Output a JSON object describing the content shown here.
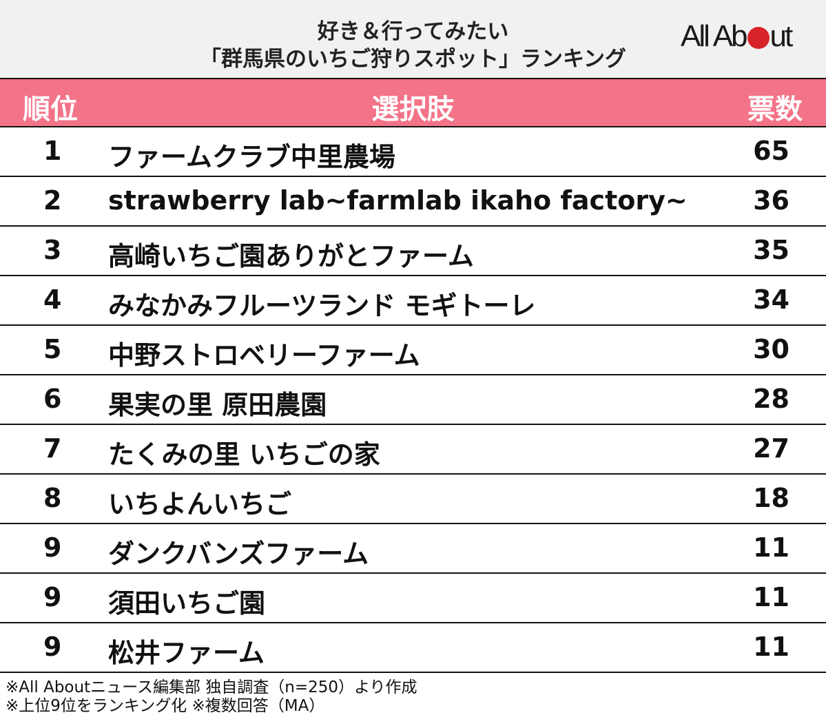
{
  "title": {
    "line1": "好き＆行ってみたい",
    "line2": "「群馬県のいちご狩りスポット」ランキング"
  },
  "logo": {
    "text_left": "All Ab",
    "text_right": "ut",
    "dot_color": "#d9232a"
  },
  "colors": {
    "header_bg": "#f37388",
    "title_bg": "#f1f1f1",
    "header_text": "#ffffff"
  },
  "header": {
    "rank": "順位",
    "choice": "選択肢",
    "votes": "票数"
  },
  "rows": [
    {
      "rank": "1",
      "name": "ファームクラブ中里農場",
      "votes": "65"
    },
    {
      "rank": "2",
      "name": "strawberry lab~farmlab ikaho factory~",
      "votes": "36"
    },
    {
      "rank": "3",
      "name": "高崎いちご園ありがとファーム",
      "votes": "35"
    },
    {
      "rank": "4",
      "name": "みなかみフルーツランド モギトーレ",
      "votes": "34"
    },
    {
      "rank": "5",
      "name": "中野ストロベリーファーム",
      "votes": "30"
    },
    {
      "rank": "6",
      "name": "果実の里 原田農園",
      "votes": "28"
    },
    {
      "rank": "7",
      "name": "たくみの里 いちごの家",
      "votes": "27"
    },
    {
      "rank": "8",
      "name": "いちよんいちご",
      "votes": "18"
    },
    {
      "rank": "9",
      "name": "ダンクバンズファーム",
      "votes": "11"
    },
    {
      "rank": "9",
      "name": "須田いちご園",
      "votes": "11"
    },
    {
      "rank": "9",
      "name": "松井ファーム",
      "votes": "11"
    }
  ],
  "notes": {
    "line1": "※All Aboutニュース編集部 独自調査（n=250）より作成",
    "line2": "※上位9位をランキング化 ※複数回答（MA）"
  },
  "chart_data": {
    "type": "table",
    "title": "好き＆行ってみたい「群馬県のいちご狩りスポット」ランキング",
    "columns": [
      "順位",
      "選択肢",
      "票数"
    ],
    "categories": [
      "ファームクラブ中里農場",
      "strawberry lab~farmlab ikaho factory~",
      "高崎いちご園ありがとファーム",
      "みなかみフルーツランド モギトーレ",
      "中野ストロベリーファーム",
      "果実の里 原田農園",
      "たくみの里 いちごの家",
      "いちよんいちご",
      "ダンクバンズファーム",
      "須田いちご園",
      "松井ファーム"
    ],
    "ranks": [
      1,
      2,
      3,
      4,
      5,
      6,
      7,
      8,
      9,
      9,
      9
    ],
    "values": [
      65,
      36,
      35,
      34,
      30,
      28,
      27,
      18,
      11,
      11,
      11
    ],
    "annotations": [
      "※All Aboutニュース編集部 独自調査（n=250）より作成",
      "※上位9位をランキング化 ※複数回答（MA）"
    ]
  }
}
